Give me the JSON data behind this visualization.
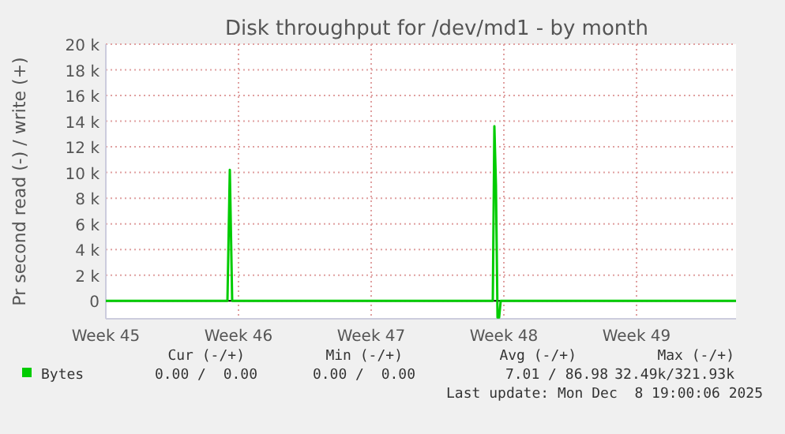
{
  "chart_data": {
    "type": "line",
    "title": "Disk throughput for /dev/md1 - by month",
    "ylabel": "Pr second read (-) / write (+)",
    "x": [
      "2025-11-03",
      "2025-11-09T10:00",
      "2025-11-09T13:00",
      "2025-11-09T16:00",
      "2025-11-09T19:00",
      "2025-11-23T10:00",
      "2025-11-23T12:00",
      "2025-11-23T14:00",
      "2025-11-23T16:00",
      "2025-11-23T18:00",
      "2025-11-23T20:00",
      "2025-12-06T06:00"
    ],
    "series": [
      {
        "name": "Bytes",
        "color": "#00cc00",
        "values": [
          0,
          0,
          10200,
          0,
          0,
          0,
          13600,
          9000,
          -1300,
          -1300,
          0,
          0
        ]
      }
    ],
    "xlim": [
      "2025-11-03",
      "2025-12-06T06:00"
    ],
    "xticks": [
      {
        "value": "2025-11-03",
        "label": "Week 45"
      },
      {
        "value": "2025-11-10",
        "label": "Week 46"
      },
      {
        "value": "2025-11-17",
        "label": "Week 47"
      },
      {
        "value": "2025-11-24",
        "label": "Week 48"
      },
      {
        "value": "2025-12-01",
        "label": "Week 49"
      }
    ],
    "ylim": [
      -1400,
      20000
    ],
    "yticks": [
      0,
      {
        "value": 2000,
        "label": "2 k"
      },
      {
        "value": 4000,
        "label": "4 k"
      },
      {
        "value": 6000,
        "label": "6 k"
      },
      {
        "value": 8000,
        "label": "8 k"
      },
      {
        "value": 10000,
        "label": "10 k"
      },
      {
        "value": 12000,
        "label": "12 k"
      },
      {
        "value": 14000,
        "label": "14 k"
      },
      {
        "value": 16000,
        "label": "16 k"
      },
      {
        "value": 18000,
        "label": "18 k"
      },
      {
        "value": 20000,
        "label": "20 k"
      }
    ],
    "grid": true,
    "legend": "bottom",
    "marker": "none",
    "line_style": "solid",
    "ref_lines": [
      {
        "axis": "y",
        "value": 0,
        "color": "#000000"
      }
    ],
    "annotations": [
      "Cur (-/+)",
      "Min (-/+)",
      "Avg (-/+)",
      "Max (-/+)",
      "0.00 /  0.00",
      "0.00 /  0.00",
      "7.01 / 86.98",
      "32.49k/321.93k",
      "Last update: Mon Dec  8 19:00:06 2025"
    ]
  }
}
